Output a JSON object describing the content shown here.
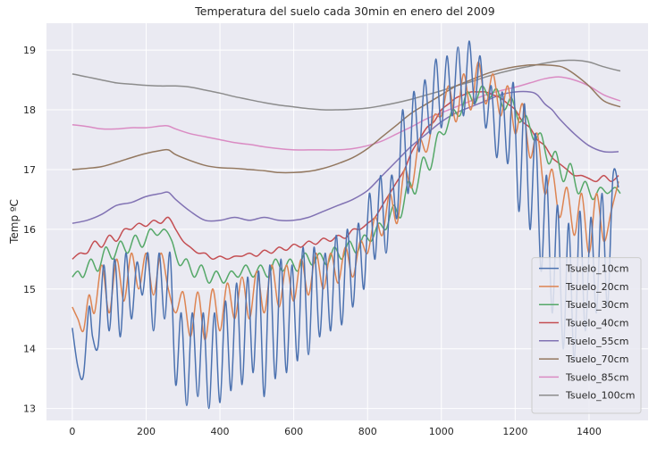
{
  "chart_data": {
    "type": "line",
    "title": "Temperatura del suelo cada 30min en enero del 2009",
    "xlabel": "",
    "ylabel": "Temp ºC",
    "xlim": [
      -70,
      1560
    ],
    "ylim": [
      12.8,
      19.45
    ],
    "x_ticks": [
      0,
      200,
      400,
      600,
      800,
      1000,
      1200,
      1400
    ],
    "y_ticks": [
      13,
      14,
      15,
      16,
      17,
      18,
      19
    ],
    "grid": true,
    "legend_position": "lower-right",
    "series": [
      {
        "name": "Tsuelo_10cm",
        "color": "#4c72b0",
        "x": [
          0,
          15,
          30,
          45,
          55,
          70,
          85,
          100,
          115,
          130,
          145,
          160,
          175,
          190,
          205,
          220,
          235,
          250,
          265,
          280,
          295,
          310,
          325,
          340,
          355,
          370,
          385,
          400,
          415,
          430,
          445,
          460,
          475,
          490,
          505,
          520,
          535,
          550,
          565,
          580,
          595,
          610,
          625,
          640,
          655,
          670,
          685,
          700,
          715,
          730,
          745,
          760,
          775,
          790,
          805,
          820,
          835,
          850,
          865,
          880,
          895,
          910,
          925,
          940,
          955,
          970,
          985,
          1000,
          1015,
          1030,
          1045,
          1060,
          1075,
          1090,
          1105,
          1120,
          1135,
          1150,
          1165,
          1180,
          1195,
          1210,
          1225,
          1240,
          1255,
          1270,
          1285,
          1300,
          1315,
          1330,
          1345,
          1360,
          1375,
          1390,
          1405,
          1420,
          1435,
          1450,
          1465,
          1480
        ],
        "y": [
          14.35,
          13.7,
          13.55,
          14.7,
          14.2,
          14.05,
          15.4,
          14.3,
          15.5,
          14.2,
          15.6,
          14.5,
          15.45,
          14.9,
          15.6,
          14.3,
          15.6,
          14.5,
          15.6,
          13.4,
          14.6,
          13.05,
          14.6,
          13.2,
          14.6,
          13.0,
          14.6,
          13.1,
          14.8,
          13.3,
          15.1,
          13.4,
          15.2,
          13.6,
          15.3,
          13.2,
          15.4,
          13.5,
          15.5,
          13.6,
          15.4,
          13.8,
          15.7,
          13.9,
          15.7,
          14.2,
          15.6,
          14.3,
          15.9,
          14.4,
          16.0,
          14.7,
          16.1,
          15.0,
          16.6,
          15.5,
          16.9,
          15.6,
          16.9,
          16.2,
          18.0,
          16.6,
          18.3,
          17.3,
          18.5,
          17.6,
          18.85,
          17.7,
          18.9,
          17.9,
          19.05,
          17.9,
          19.15,
          18.1,
          18.9,
          17.7,
          18.4,
          17.2,
          18.3,
          17.1,
          18.45,
          16.3,
          18.1,
          16.0,
          17.6,
          15.3,
          16.9,
          14.6,
          16.4,
          14.0,
          16.1,
          13.8,
          16.3,
          14.3,
          16.2,
          14.6,
          16.6,
          14.7,
          16.9,
          16.7
        ]
      },
      {
        "name": "Tsuelo_20cm",
        "color": "#dd8452",
        "x": [
          0,
          15,
          30,
          45,
          60,
          80,
          100,
          120,
          140,
          160,
          180,
          200,
          220,
          240,
          260,
          280,
          300,
          320,
          340,
          360,
          380,
          400,
          420,
          440,
          460,
          480,
          500,
          520,
          540,
          560,
          580,
          600,
          620,
          640,
          660,
          680,
          700,
          720,
          740,
          760,
          780,
          800,
          820,
          840,
          860,
          880,
          900,
          920,
          940,
          960,
          980,
          1000,
          1020,
          1040,
          1060,
          1080,
          1100,
          1120,
          1140,
          1160,
          1180,
          1200,
          1220,
          1240,
          1260,
          1280,
          1300,
          1320,
          1340,
          1360,
          1380,
          1400,
          1420,
          1440,
          1460,
          1480
        ],
        "y": [
          14.7,
          14.5,
          14.3,
          14.9,
          14.6,
          15.4,
          14.6,
          15.5,
          14.8,
          15.6,
          15.0,
          15.6,
          14.9,
          15.6,
          15.0,
          14.6,
          14.95,
          14.2,
          14.95,
          14.15,
          15.0,
          14.3,
          15.1,
          14.5,
          15.2,
          14.5,
          15.3,
          14.6,
          15.4,
          14.7,
          15.4,
          14.8,
          15.5,
          14.9,
          15.6,
          15.0,
          15.6,
          15.1,
          15.7,
          15.2,
          15.8,
          15.6,
          16.2,
          15.9,
          16.6,
          16.1,
          17.0,
          16.7,
          17.5,
          17.3,
          17.9,
          17.9,
          18.4,
          17.8,
          18.6,
          18.0,
          18.8,
          18.1,
          18.6,
          17.9,
          18.4,
          17.6,
          18.1,
          17.2,
          17.6,
          16.6,
          17.0,
          16.2,
          16.7,
          15.9,
          16.6,
          15.6,
          16.6,
          15.8,
          16.3,
          16.8
        ]
      },
      {
        "name": "Tsuelo_30cm",
        "color": "#55a868",
        "x": [
          0,
          15,
          30,
          50,
          70,
          90,
          110,
          130,
          150,
          170,
          190,
          210,
          230,
          250,
          270,
          290,
          310,
          330,
          350,
          370,
          390,
          410,
          430,
          450,
          470,
          490,
          510,
          530,
          550,
          570,
          590,
          610,
          630,
          650,
          670,
          690,
          710,
          730,
          750,
          770,
          790,
          810,
          830,
          850,
          870,
          890,
          910,
          930,
          950,
          970,
          990,
          1010,
          1030,
          1050,
          1070,
          1090,
          1110,
          1130,
          1150,
          1170,
          1190,
          1210,
          1230,
          1250,
          1270,
          1290,
          1310,
          1330,
          1350,
          1370,
          1390,
          1410,
          1430,
          1450,
          1470,
          1485
        ],
        "y": [
          15.2,
          15.3,
          15.2,
          15.5,
          15.3,
          15.7,
          15.5,
          15.8,
          15.6,
          15.9,
          15.7,
          16.0,
          15.9,
          16.0,
          15.8,
          15.4,
          15.5,
          15.2,
          15.4,
          15.1,
          15.3,
          15.1,
          15.3,
          15.2,
          15.4,
          15.2,
          15.4,
          15.2,
          15.5,
          15.3,
          15.5,
          15.3,
          15.6,
          15.4,
          15.6,
          15.4,
          15.7,
          15.5,
          15.8,
          15.6,
          15.9,
          15.8,
          16.1,
          16.0,
          16.4,
          16.2,
          16.8,
          16.6,
          17.2,
          17.0,
          17.6,
          17.6,
          18.0,
          17.9,
          18.3,
          18.1,
          18.4,
          18.2,
          18.35,
          18.0,
          18.2,
          17.8,
          17.9,
          17.5,
          17.6,
          17.1,
          17.3,
          16.8,
          17.1,
          16.6,
          16.8,
          16.5,
          16.7,
          16.6,
          16.7,
          16.6
        ]
      },
      {
        "name": "Tsuelo_40cm",
        "color": "#c44e52",
        "x": [
          0,
          20,
          40,
          60,
          80,
          100,
          120,
          140,
          160,
          180,
          200,
          220,
          240,
          260,
          280,
          300,
          320,
          340,
          360,
          380,
          400,
          420,
          440,
          460,
          480,
          500,
          520,
          540,
          560,
          580,
          600,
          620,
          640,
          660,
          680,
          700,
          720,
          740,
          760,
          780,
          800,
          820,
          840,
          860,
          880,
          900,
          920,
          940,
          960,
          980,
          1000,
          1020,
          1040,
          1060,
          1080,
          1100,
          1120,
          1140,
          1160,
          1180,
          1200,
          1220,
          1240,
          1260,
          1280,
          1300,
          1320,
          1340,
          1360,
          1380,
          1400,
          1420,
          1440,
          1460,
          1480
        ],
        "y": [
          15.5,
          15.6,
          15.6,
          15.8,
          15.7,
          15.9,
          15.8,
          16.0,
          16.0,
          16.1,
          16.05,
          16.15,
          16.1,
          16.2,
          16.0,
          15.8,
          15.7,
          15.6,
          15.6,
          15.5,
          15.55,
          15.5,
          15.55,
          15.55,
          15.6,
          15.55,
          15.65,
          15.6,
          15.7,
          15.65,
          15.75,
          15.7,
          15.8,
          15.75,
          15.85,
          15.8,
          15.9,
          15.85,
          16.0,
          16.0,
          16.1,
          16.2,
          16.4,
          16.6,
          16.8,
          17.0,
          17.3,
          17.5,
          17.7,
          17.8,
          18.0,
          18.1,
          18.2,
          18.25,
          18.3,
          18.3,
          18.3,
          18.25,
          18.2,
          18.1,
          18.0,
          17.8,
          17.7,
          17.5,
          17.4,
          17.2,
          17.1,
          17.0,
          16.9,
          16.9,
          16.85,
          16.8,
          16.9,
          16.8,
          16.9
        ]
      },
      {
        "name": "Tsuelo_55cm",
        "color": "#8172b3",
        "x": [
          0,
          40,
          80,
          120,
          160,
          200,
          240,
          260,
          280,
          320,
          360,
          400,
          440,
          480,
          520,
          560,
          600,
          640,
          680,
          720,
          760,
          800,
          840,
          880,
          920,
          960,
          1000,
          1040,
          1080,
          1120,
          1160,
          1200,
          1240,
          1260,
          1280,
          1300,
          1320,
          1360,
          1400,
          1440,
          1480
        ],
        "y": [
          16.1,
          16.15,
          16.25,
          16.4,
          16.45,
          16.55,
          16.6,
          16.62,
          16.5,
          16.3,
          16.15,
          16.15,
          16.2,
          16.15,
          16.2,
          16.15,
          16.15,
          16.2,
          16.3,
          16.4,
          16.5,
          16.65,
          16.9,
          17.15,
          17.4,
          17.6,
          17.8,
          17.95,
          18.05,
          18.15,
          18.25,
          18.3,
          18.3,
          18.25,
          18.1,
          18.0,
          17.85,
          17.6,
          17.4,
          17.3,
          17.3
        ]
      },
      {
        "name": "Tsuelo_70cm",
        "color": "#937860",
        "x": [
          0,
          40,
          80,
          120,
          160,
          200,
          240,
          260,
          280,
          320,
          360,
          400,
          440,
          480,
          520,
          560,
          600,
          640,
          680,
          720,
          760,
          800,
          840,
          880,
          920,
          960,
          1000,
          1040,
          1080,
          1120,
          1160,
          1200,
          1240,
          1280,
          1320,
          1340,
          1360,
          1400,
          1440,
          1485
        ],
        "y": [
          17.0,
          17.02,
          17.05,
          17.12,
          17.2,
          17.27,
          17.32,
          17.33,
          17.25,
          17.15,
          17.07,
          17.03,
          17.02,
          17.0,
          16.98,
          16.95,
          16.95,
          16.97,
          17.02,
          17.1,
          17.2,
          17.35,
          17.55,
          17.75,
          17.95,
          18.1,
          18.25,
          18.4,
          18.5,
          18.6,
          18.67,
          18.72,
          18.75,
          18.75,
          18.73,
          18.68,
          18.6,
          18.4,
          18.15,
          18.05
        ]
      },
      {
        "name": "Tsuelo_85cm",
        "color": "#da8bc3",
        "x": [
          0,
          40,
          80,
          120,
          160,
          200,
          240,
          260,
          280,
          320,
          360,
          400,
          440,
          480,
          520,
          560,
          600,
          640,
          680,
          720,
          760,
          800,
          840,
          880,
          920,
          960,
          1000,
          1040,
          1080,
          1120,
          1160,
          1200,
          1240,
          1280,
          1320,
          1360,
          1400,
          1440,
          1485
        ],
        "y": [
          17.75,
          17.72,
          17.68,
          17.68,
          17.7,
          17.7,
          17.73,
          17.73,
          17.68,
          17.6,
          17.55,
          17.5,
          17.45,
          17.42,
          17.38,
          17.35,
          17.33,
          17.33,
          17.33,
          17.33,
          17.35,
          17.4,
          17.48,
          17.6,
          17.72,
          17.85,
          17.95,
          18.05,
          18.15,
          18.25,
          18.32,
          18.38,
          18.45,
          18.52,
          18.55,
          18.5,
          18.4,
          18.25,
          18.15
        ]
      },
      {
        "name": "Tsuelo_100cm",
        "color": "#8c8c8c",
        "x": [
          0,
          40,
          80,
          120,
          160,
          200,
          240,
          280,
          320,
          360,
          400,
          440,
          480,
          520,
          560,
          600,
          640,
          680,
          720,
          760,
          800,
          840,
          880,
          920,
          960,
          1000,
          1040,
          1080,
          1120,
          1160,
          1200,
          1240,
          1280,
          1320,
          1360,
          1400,
          1440,
          1485
        ],
        "y": [
          18.6,
          18.55,
          18.5,
          18.45,
          18.43,
          18.41,
          18.4,
          18.4,
          18.38,
          18.33,
          18.28,
          18.22,
          18.17,
          18.12,
          18.08,
          18.05,
          18.02,
          18.0,
          18.0,
          18.01,
          18.03,
          18.07,
          18.12,
          18.18,
          18.25,
          18.32,
          18.4,
          18.47,
          18.55,
          18.62,
          18.68,
          18.73,
          18.78,
          18.82,
          18.83,
          18.8,
          18.72,
          18.65
        ]
      }
    ]
  }
}
